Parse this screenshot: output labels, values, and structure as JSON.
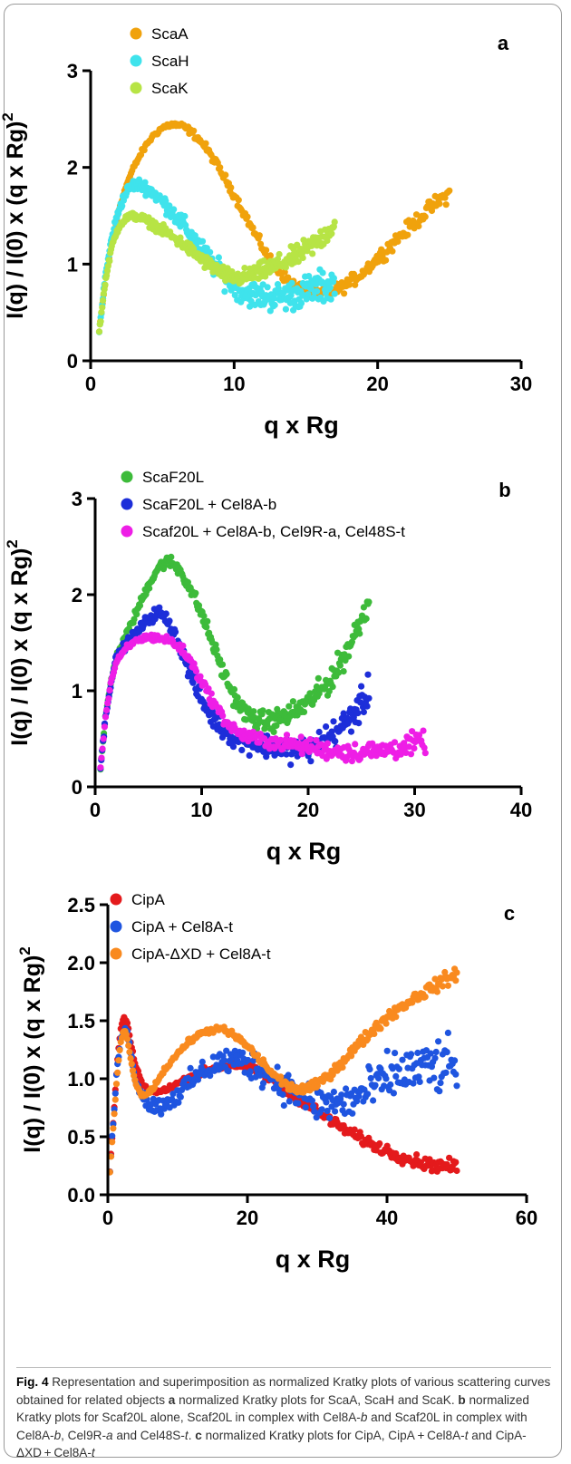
{
  "chart_data": [
    {
      "type": "scatter",
      "panel_label": "a",
      "xlabel": "q x Rg",
      "ylabel": "I(q) / I(0) x (q x Rg)",
      "ylabel_sup": "2",
      "xlim": [
        0,
        30
      ],
      "ylim": [
        0,
        3
      ],
      "xticks": [
        "0",
        "10",
        "20",
        "30"
      ],
      "yticks": [
        "0",
        "1",
        "2",
        "3"
      ],
      "legend_position": "top-left",
      "series": [
        {
          "name": "ScaA",
          "color": "#f0a20c",
          "x": [
            0.6,
            1.0,
            1.5,
            2.0,
            2.5,
            3.0,
            3.5,
            4.0,
            4.5,
            5.0,
            5.5,
            6.0,
            6.5,
            7.0,
            7.5,
            8.0,
            8.5,
            9.0,
            9.5,
            10.0,
            10.5,
            11.0,
            11.5,
            12.0,
            12.5,
            13.0,
            13.5,
            14.0,
            14.5,
            15.0,
            15.5,
            16.0,
            16.5,
            17.0,
            17.5,
            18.0,
            18.5,
            19.0,
            19.5,
            20.0,
            20.5,
            21.0,
            21.5,
            22.0,
            22.5,
            23.0,
            23.5,
            24.0,
            24.5,
            25.0
          ],
          "y": [
            0.3,
            0.8,
            1.25,
            1.58,
            1.82,
            2.0,
            2.14,
            2.26,
            2.35,
            2.41,
            2.44,
            2.44,
            2.42,
            2.37,
            2.3,
            2.21,
            2.1,
            1.98,
            1.85,
            1.72,
            1.58,
            1.44,
            1.3,
            1.17,
            1.05,
            0.95,
            0.87,
            0.8,
            0.75,
            0.72,
            0.7,
            0.7,
            0.71,
            0.73,
            0.76,
            0.8,
            0.86,
            0.92,
            0.99,
            1.06,
            1.13,
            1.21,
            1.28,
            1.35,
            1.42,
            1.49,
            1.56,
            1.62,
            1.68,
            1.73
          ],
          "spread": 0.07
        },
        {
          "name": "ScaH",
          "color": "#3fe3ec",
          "x": [
            0.6,
            1.0,
            1.5,
            2.0,
            2.5,
            3.0,
            3.5,
            4.0,
            4.5,
            5.0,
            5.5,
            6.0,
            6.5,
            7.0,
            7.5,
            8.0,
            8.5,
            9.0,
            9.5,
            10.0,
            10.5,
            11.0,
            11.5,
            12.0,
            12.5,
            13.0,
            13.5,
            14.0,
            14.5,
            15.0,
            15.5,
            16.0,
            16.5,
            17.0
          ],
          "y": [
            0.3,
            0.85,
            1.3,
            1.58,
            1.75,
            1.82,
            1.82,
            1.78,
            1.72,
            1.65,
            1.57,
            1.48,
            1.4,
            1.3,
            1.2,
            1.1,
            1.0,
            0.92,
            0.84,
            0.78,
            0.73,
            0.7,
            0.68,
            0.67,
            0.66,
            0.66,
            0.67,
            0.68,
            0.7,
            0.72,
            0.74,
            0.76,
            0.78,
            0.8
          ],
          "spread": 0.15
        },
        {
          "name": "ScaK",
          "color": "#b7e445",
          "x": [
            0.6,
            1.0,
            1.5,
            2.0,
            2.5,
            3.0,
            3.5,
            4.0,
            4.5,
            5.0,
            5.5,
            6.0,
            6.5,
            7.0,
            7.5,
            8.0,
            8.5,
            9.0,
            9.5,
            10.0,
            10.5,
            11.0,
            11.5,
            12.0,
            12.5,
            13.0,
            13.5,
            14.0,
            14.5,
            15.0,
            15.5,
            16.0,
            16.5,
            17.0
          ],
          "y": [
            0.3,
            0.8,
            1.2,
            1.4,
            1.48,
            1.5,
            1.48,
            1.44,
            1.4,
            1.35,
            1.3,
            1.25,
            1.2,
            1.14,
            1.08,
            1.02,
            0.97,
            0.92,
            0.88,
            0.86,
            0.86,
            0.88,
            0.9,
            0.93,
            0.96,
            0.99,
            1.02,
            1.06,
            1.1,
            1.15,
            1.2,
            1.26,
            1.33,
            1.4
          ],
          "spread": 0.1
        }
      ]
    },
    {
      "type": "scatter",
      "panel_label": "b",
      "xlabel": "q x Rg",
      "ylabel": "I(q) / I(0) x (q x Rg)",
      "ylabel_sup": "2",
      "xlim": [
        0,
        40
      ],
      "ylim": [
        0,
        3
      ],
      "xticks": [
        "0",
        "10",
        "20",
        "30",
        "40"
      ],
      "yticks": [
        "0",
        "1",
        "2",
        "3"
      ],
      "legend_position": "top-left",
      "series": [
        {
          "name": "ScaF20L",
          "color": "#3dbb3a",
          "x": [
            0.5,
            1.0,
            1.5,
            2.0,
            3.0,
            4.0,
            5.0,
            6.0,
            7.0,
            8.0,
            9.0,
            10.0,
            11.0,
            12.0,
            13.0,
            14.0,
            15.0,
            16.0,
            17.0,
            18.0,
            19.0,
            20.0,
            21.0,
            22.0,
            23.0,
            24.0,
            25.0,
            25.7
          ],
          "y": [
            0.2,
            0.75,
            1.1,
            1.35,
            1.6,
            1.85,
            2.1,
            2.3,
            2.35,
            2.25,
            2.05,
            1.8,
            1.5,
            1.2,
            0.95,
            0.78,
            0.7,
            0.68,
            0.7,
            0.74,
            0.8,
            0.88,
            0.98,
            1.1,
            1.28,
            1.5,
            1.75,
            1.95
          ],
          "spread": 0.12
        },
        {
          "name": "ScaF20L + Cel8A-b",
          "color": "#1d2ed9",
          "x": [
            0.5,
            1.0,
            1.5,
            2.0,
            3.0,
            4.0,
            5.0,
            6.0,
            7.0,
            8.0,
            9.0,
            10.0,
            11.0,
            12.0,
            13.0,
            14.0,
            15.0,
            16.0,
            17.0,
            18.0,
            19.0,
            20.0,
            21.0,
            22.0,
            23.0,
            24.0,
            25.0,
            25.7
          ],
          "y": [
            0.2,
            0.75,
            1.1,
            1.35,
            1.5,
            1.62,
            1.75,
            1.82,
            1.7,
            1.45,
            1.15,
            0.9,
            0.72,
            0.6,
            0.52,
            0.48,
            0.45,
            0.43,
            0.42,
            0.4,
            0.38,
            0.4,
            0.45,
            0.52,
            0.6,
            0.72,
            0.85,
            1.0
          ],
          "spread": 0.14
        },
        {
          "name": "Scaf20L + Cel8A-b, Cel9R-a, Cel48S-t",
          "color": "#ee1ee6",
          "x": [
            0.5,
            1.0,
            1.5,
            2.0,
            3.0,
            4.0,
            5.0,
            6.0,
            7.0,
            8.0,
            9.0,
            10.0,
            11.0,
            12.0,
            13.0,
            14.0,
            15.0,
            16.0,
            17.0,
            18.0,
            19.0,
            20.0,
            21.0,
            22.0,
            23.0,
            24.0,
            25.0,
            26.0,
            27.0,
            28.0,
            29.0,
            30.0,
            31.0
          ],
          "y": [
            0.2,
            0.75,
            1.1,
            1.3,
            1.45,
            1.53,
            1.56,
            1.55,
            1.52,
            1.45,
            1.3,
            1.1,
            0.9,
            0.72,
            0.6,
            0.53,
            0.5,
            0.48,
            0.46,
            0.45,
            0.43,
            0.42,
            0.4,
            0.38,
            0.37,
            0.36,
            0.36,
            0.37,
            0.38,
            0.4,
            0.42,
            0.45,
            0.48
          ],
          "spread": 0.1
        }
      ]
    },
    {
      "type": "scatter",
      "panel_label": "c",
      "xlabel": "q x Rg",
      "ylabel": "I(q) / I(0) x (q x Rg)",
      "ylabel_sup": "2",
      "xlim": [
        0,
        60
      ],
      "ylim": [
        0,
        2.5
      ],
      "xticks": [
        "0",
        "20",
        "40",
        "60"
      ],
      "yticks": [
        "0.0",
        "0.5",
        "1.0",
        "1.5",
        "2.0",
        "2.5"
      ],
      "legend_position": "top-left",
      "series": [
        {
          "name": "CipA",
          "color": "#e41a1c",
          "x": [
            0.3,
            0.8,
            1.3,
            1.8,
            2.3,
            2.8,
            3.3,
            4.0,
            5.0,
            6.0,
            7.0,
            8.0,
            10.0,
            12.0,
            14.0,
            16.0,
            18.0,
            20.0,
            22.0,
            24.0,
            26.0,
            28.0,
            30.0,
            32.0,
            34.0,
            36.0,
            38.0,
            40.0,
            42.0,
            44.0,
            46.0,
            48.0,
            50.0
          ],
          "y": [
            0.2,
            0.65,
            1.1,
            1.42,
            1.53,
            1.48,
            1.3,
            1.1,
            0.95,
            0.9,
            0.88,
            0.9,
            0.96,
            1.02,
            1.07,
            1.1,
            1.12,
            1.1,
            1.05,
            0.97,
            0.88,
            0.8,
            0.72,
            0.64,
            0.56,
            0.49,
            0.43,
            0.38,
            0.33,
            0.29,
            0.26,
            0.25,
            0.24
          ],
          "spread": 0.05
        },
        {
          "name": "CipA + Cel8A-t",
          "color": "#1f55e0",
          "x": [
            0.3,
            0.8,
            1.3,
            1.8,
            2.3,
            2.8,
            3.3,
            4.0,
            5.0,
            6.0,
            7.0,
            8.0,
            10.0,
            12.0,
            14.0,
            16.0,
            18.0,
            20.0,
            22.0,
            24.0,
            26.0,
            28.0,
            30.0,
            32.0,
            34.0,
            36.0,
            38.0,
            40.0,
            42.0,
            44.0,
            46.0,
            48.0,
            50.0
          ],
          "y": [
            0.2,
            0.65,
            1.05,
            1.35,
            1.45,
            1.4,
            1.2,
            1.0,
            0.85,
            0.78,
            0.76,
            0.78,
            0.86,
            0.98,
            1.08,
            1.14,
            1.16,
            1.14,
            1.08,
            1.0,
            0.92,
            0.85,
            0.8,
            0.78,
            0.8,
            0.85,
            0.92,
            1.0,
            1.05,
            1.08,
            1.1,
            1.1,
            1.1
          ],
          "spread": 0.2
        },
        {
          "name": "CipA-ΔXD + Cel8A-t",
          "color": "#f98a1f",
          "x": [
            0.3,
            0.8,
            1.3,
            1.8,
            2.3,
            2.8,
            3.3,
            4.0,
            5.0,
            6.0,
            7.0,
            8.0,
            10.0,
            12.0,
            14.0,
            16.0,
            18.0,
            20.0,
            22.0,
            24.0,
            26.0,
            28.0,
            30.0,
            32.0,
            34.0,
            36.0,
            38.0,
            40.0,
            42.0,
            44.0,
            46.0,
            48.0,
            50.0
          ],
          "y": [
            0.2,
            0.6,
            1.0,
            1.3,
            1.42,
            1.35,
            1.15,
            0.95,
            0.85,
            0.88,
            0.97,
            1.07,
            1.22,
            1.34,
            1.41,
            1.43,
            1.38,
            1.28,
            1.15,
            1.02,
            0.93,
            0.9,
            0.95,
            1.05,
            1.17,
            1.3,
            1.42,
            1.53,
            1.62,
            1.7,
            1.77,
            1.84,
            1.9
          ],
          "spread": 0.05
        }
      ]
    }
  ],
  "caption": {
    "label": "Fig. 4",
    "segments": [
      {
        "text": "  Representation and superimposition as normalized Kratky plots of various scattering curves obtained for related objects ",
        "style": "normal"
      },
      {
        "text": "a",
        "style": "bold"
      },
      {
        "text": " normalized Kratky plots for ScaA, ScaH and ScaK. ",
        "style": "normal"
      },
      {
        "text": "b",
        "style": "bold"
      },
      {
        "text": " normalized Kratky plots for Scaf20L alone, Scaf20L in complex with Cel8A-",
        "style": "normal"
      },
      {
        "text": "b",
        "style": "italic"
      },
      {
        "text": " and Scaf20L in complex with Cel8A-",
        "style": "normal"
      },
      {
        "text": "b",
        "style": "italic"
      },
      {
        "text": ", Cel9R-",
        "style": "normal"
      },
      {
        "text": "a",
        "style": "italic"
      },
      {
        "text": " and Cel48S-",
        "style": "normal"
      },
      {
        "text": "t",
        "style": "italic"
      },
      {
        "text": ". ",
        "style": "normal"
      },
      {
        "text": "c",
        "style": "bold"
      },
      {
        "text": " normalized Kratky plots for CipA, CipA + Cel8A-",
        "style": "normal"
      },
      {
        "text": "t",
        "style": "italic"
      },
      {
        "text": " and CipA-ΔXD + Cel8A-",
        "style": "normal"
      },
      {
        "text": "t",
        "style": "italic"
      }
    ]
  }
}
